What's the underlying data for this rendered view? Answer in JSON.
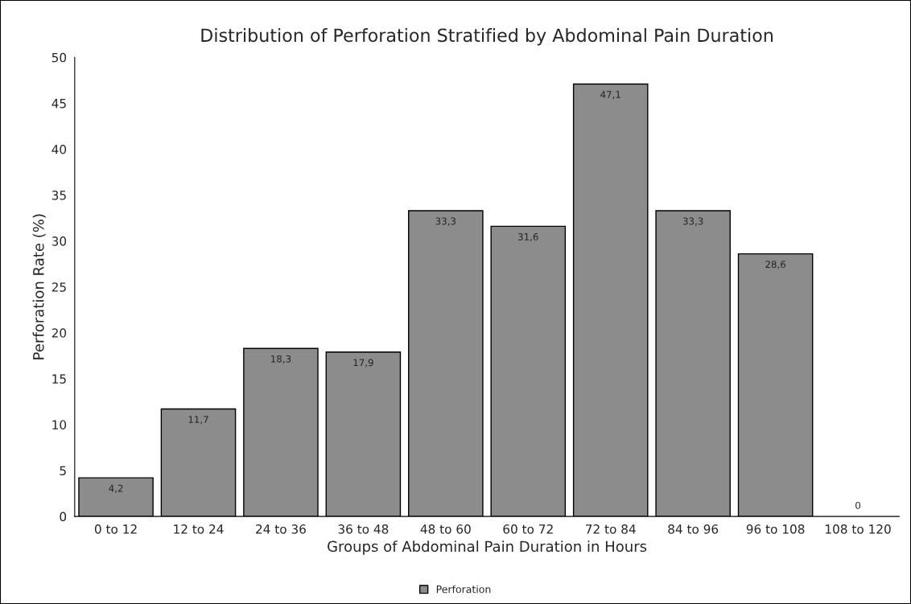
{
  "chart_data": {
    "type": "bar",
    "title": "Distribution of Perforation Stratified by Abdominal Pain Duration",
    "xlabel": "Groups of Abdominal Pain Duration in Hours",
    "ylabel": "Perforation Rate (%)",
    "categories": [
      "0 to 12",
      "12 to 24",
      "24 to 36",
      "36 to 48",
      "48 to 60",
      "60 to 72",
      "72 to 84",
      "84 to 96",
      "96 to 108",
      "108 to 120"
    ],
    "series": [
      {
        "name": "Perforation",
        "color": "#8c8c8c",
        "values": [
          4.2,
          11.7,
          18.3,
          17.9,
          33.3,
          31.6,
          47.1,
          33.3,
          28.6,
          0
        ],
        "value_labels": [
          "4,2",
          "11,7",
          "18,3",
          "17,9",
          "33,3",
          "31,6",
          "47,1",
          "33,3",
          "28,6",
          "0"
        ]
      }
    ],
    "ylim": [
      0,
      50
    ],
    "yticks": [
      0,
      5,
      10,
      15,
      20,
      25,
      30,
      35,
      40,
      45,
      50
    ],
    "grid": false,
    "legend": "bottom"
  }
}
